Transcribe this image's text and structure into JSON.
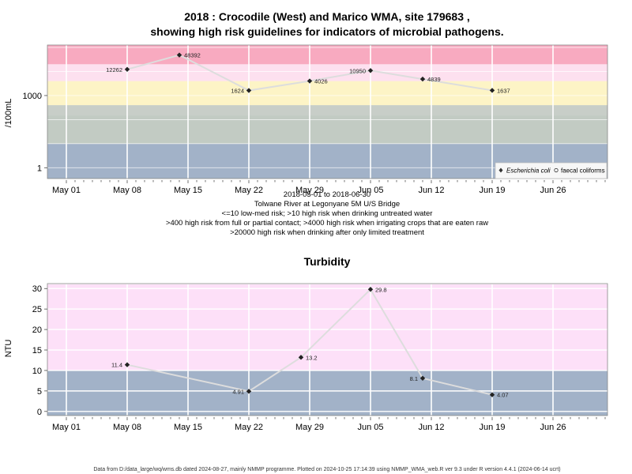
{
  "footer": "Data from D:/data_large/wq/wms.db dated 2024-08-27, mainly NMMP programme. Plotted on 2024-10-25 17:14:39 using NMMP_WMA_web.R ver 9.3 under R version 4.4.1 (2024-06-14 ucrt)",
  "chart_data": [
    {
      "type": "line",
      "title": "2018 : Crocodile (West) and Marico WMA, site 179683 ,",
      "subtitle": "showing high risk guidelines for indicators of microbial pathogens.",
      "ylabel": "/100mL",
      "y_scale": "log",
      "y_ticks": [
        1,
        1000
      ],
      "x_ticks": [
        "May 01",
        "May 08",
        "May 15",
        "May 22",
        "May 29",
        "Jun 05",
        "Jun 12",
        "Jun 19",
        "Jun 26"
      ],
      "x_notes": [
        "2018-05-01 to 2018-06-30",
        "Tolwane River at Legonyane 5M U/S Bridge",
        "<=10 low-med risk; >10 high risk when drinking untreated water",
        ">400 high risk from full or partial contact; >4000 high risk when irrigating crops that are eaten raw",
        ">20000 high risk when drinking after only limited treatment"
      ],
      "legend": [
        "Escherichia coli",
        "faecal coliforms"
      ],
      "legend_position": "bottom-right",
      "risk_bands": [
        {
          "from": 0.1,
          "to": 10,
          "color": "#a2b2c8"
        },
        {
          "from": 10,
          "to": 150,
          "color": "#c2cbc3"
        },
        {
          "from": 150,
          "to": 400,
          "color": "#c8cec8"
        },
        {
          "from": 400,
          "to": 4000,
          "color": "#fdf4c6"
        },
        {
          "from": 4000,
          "to": 20000,
          "color": "#fde0ef"
        },
        {
          "from": 20000,
          "to": 200000,
          "color": "#f8aac0"
        }
      ],
      "series": [
        {
          "name": "Escherichia coli",
          "x": [
            "2018-05-08",
            "2018-05-14",
            "2018-05-22",
            "2018-05-29",
            "2018-06-05",
            "2018-06-11",
            "2018-06-19"
          ],
          "values": [
            12262,
            48392,
            1624,
            4026,
            10950,
            4839,
            1637
          ],
          "labels": [
            "12262",
            "48392",
            "1624",
            "4026",
            "10950",
            "4839",
            "1637"
          ]
        }
      ]
    },
    {
      "type": "line",
      "title": "Turbidity",
      "ylabel": "NTU",
      "y_ticks": [
        0,
        5,
        10,
        15,
        20,
        25,
        30
      ],
      "x_ticks": [
        "May 01",
        "May 08",
        "May 15",
        "May 22",
        "May 29",
        "Jun 05",
        "Jun 12",
        "Jun 19",
        "Jun 26"
      ],
      "risk_bands": [
        {
          "from": -1.5,
          "to": 10,
          "color": "#a2b2c8"
        },
        {
          "from": 10,
          "to": 31,
          "color": "#fde0f8"
        }
      ],
      "series": [
        {
          "x": [
            "2018-05-08",
            "2018-05-22",
            "2018-05-28",
            "2018-06-05",
            "2018-06-11",
            "2018-06-19"
          ],
          "values": [
            11.4,
            4.91,
            13.2,
            29.8,
            8.1,
            4.07
          ],
          "labels": [
            "11.4",
            "4.91",
            "13.2",
            "29.8",
            "8.1",
            "4.07"
          ]
        }
      ]
    }
  ]
}
